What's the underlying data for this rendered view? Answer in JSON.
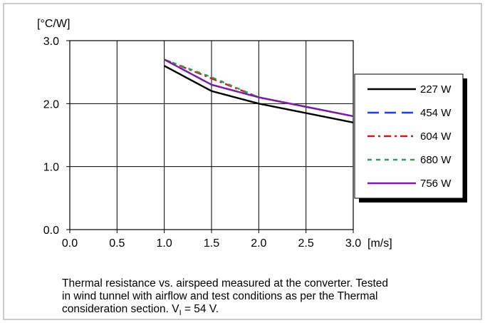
{
  "chart_data": {
    "type": "line",
    "ylabel": "[°C/W]",
    "xlabel": "[m/s]",
    "xlim": [
      0.0,
      3.0
    ],
    "ylim": [
      0.0,
      3.0
    ],
    "xticks": [
      "0.0",
      "0.5",
      "1.0",
      "1.5",
      "2.0",
      "2.5",
      "3.0"
    ],
    "yticks": [
      "0.0",
      "1.0",
      "2.0",
      "3.0"
    ],
    "grid": true,
    "legend_position": "right",
    "series": [
      {
        "name": "227 W",
        "color": "#000000",
        "dash": "solid",
        "x": [
          1.0,
          1.5,
          2.0,
          2.5,
          3.0
        ],
        "y": [
          2.6,
          2.2,
          2.0,
          1.85,
          1.7
        ]
      },
      {
        "name": "454 W",
        "color": "#1f3fe0",
        "dash": "dashed",
        "x": [
          1.0,
          1.5,
          2.0,
          2.5,
          3.0
        ],
        "y": [
          2.7,
          2.3,
          2.1,
          1.95,
          1.8
        ]
      },
      {
        "name": "604 W",
        "color": "#e01010",
        "dash": "dashdot",
        "x": [
          1.0,
          1.5,
          2.0,
          2.5,
          3.0
        ],
        "y": [
          2.7,
          2.4,
          2.1,
          1.95,
          1.8
        ]
      },
      {
        "name": "680 W",
        "color": "#2e9a5a",
        "dash": "shortdash",
        "x": [
          1.0,
          1.5,
          2.0,
          2.5,
          3.0
        ],
        "y": [
          2.7,
          2.42,
          2.1,
          1.95,
          1.8
        ]
      },
      {
        "name": "756 W",
        "color": "#7a1fa0",
        "dash": "solid",
        "x": [
          1.0,
          1.5,
          2.0,
          2.5,
          3.0
        ],
        "y": [
          2.7,
          2.3,
          2.1,
          1.95,
          1.8
        ]
      }
    ]
  },
  "caption": {
    "line1": "Thermal resistance vs. airspeed measured at the converter. Tested",
    "line2": "in wind tunnel with airflow and test conditions as per the Thermal",
    "line3_prefix": "consideration section. V",
    "line3_sub": "I",
    "line3_suffix": " = 54 V."
  }
}
